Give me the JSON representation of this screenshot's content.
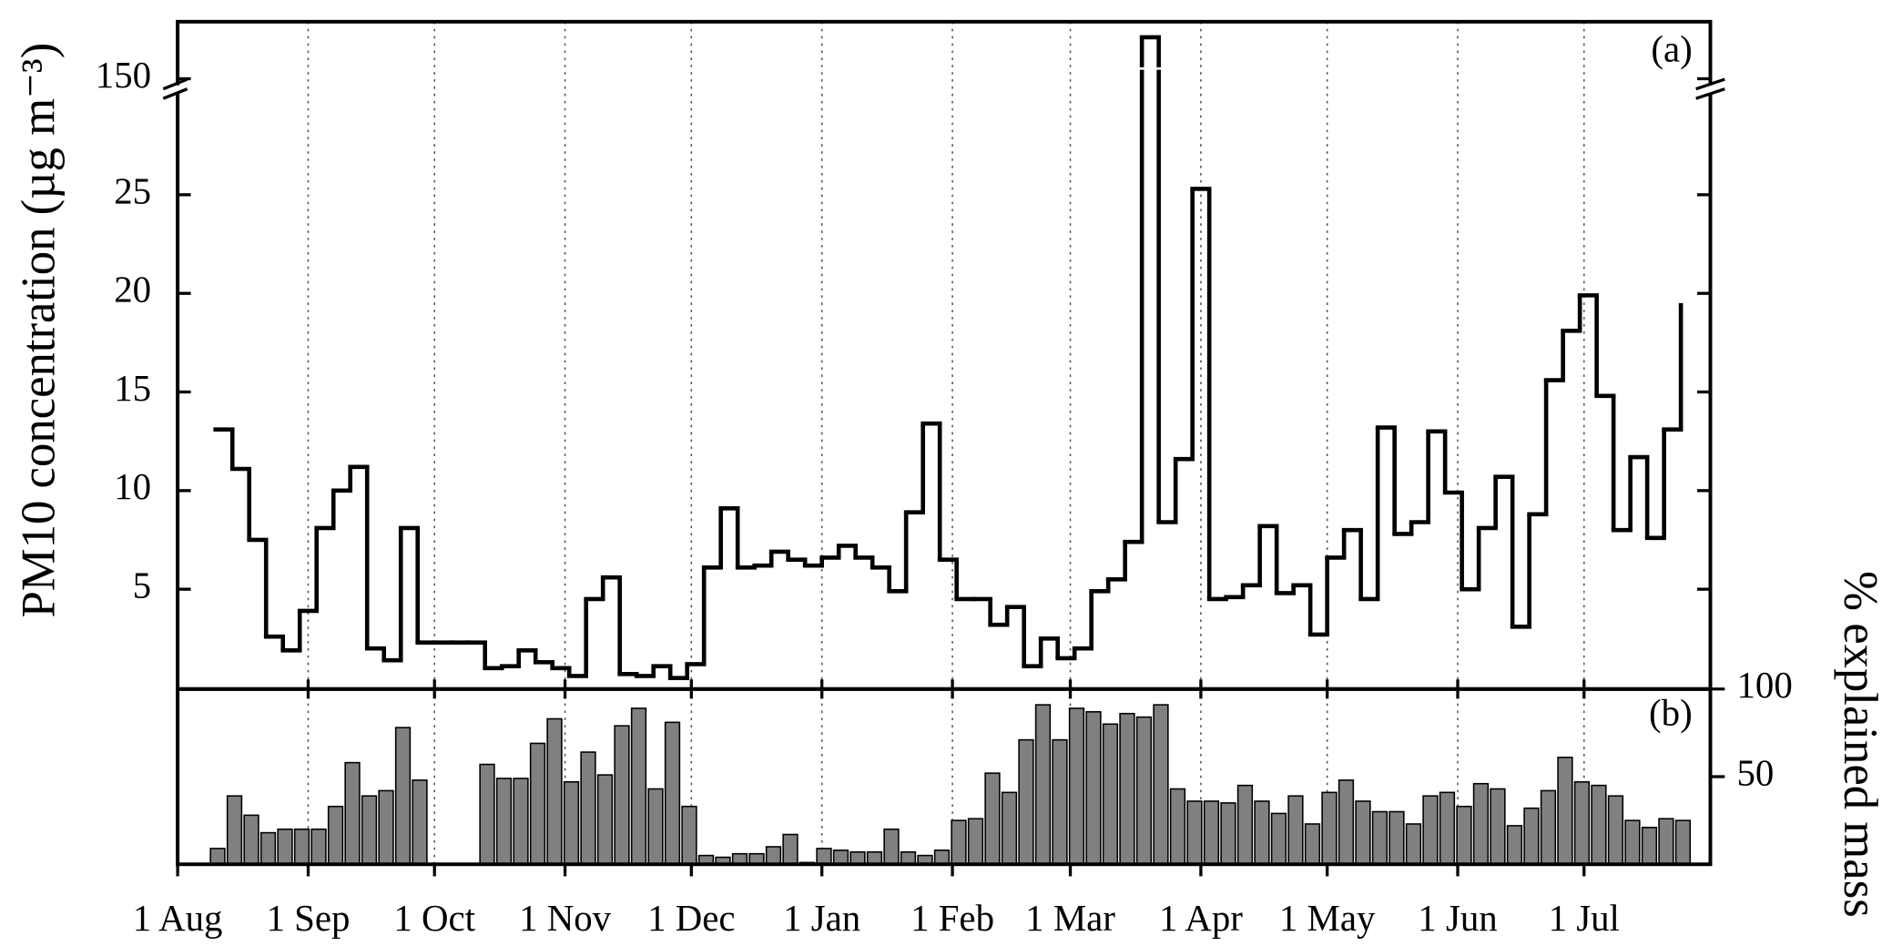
{
  "chart_data": [
    {
      "type": "line",
      "step": true,
      "annotation": "(a)",
      "y_label": "PM10 concentration (µg m⁻³)",
      "x": [
        9,
        13,
        17,
        21,
        25,
        29,
        33,
        37,
        41,
        45,
        49,
        53,
        57,
        61,
        65,
        69,
        73,
        77,
        81,
        85,
        89,
        93,
        97,
        101,
        105,
        109,
        113,
        117,
        121,
        125,
        129,
        133,
        137,
        141,
        145,
        149,
        153,
        157,
        161,
        165,
        169,
        173,
        177,
        181,
        185,
        189,
        193,
        197,
        201,
        205,
        209,
        213,
        217,
        221,
        225,
        229,
        233,
        237,
        241,
        245,
        249,
        253,
        257,
        261,
        265,
        269,
        273,
        277,
        281,
        285,
        289,
        293,
        297,
        301,
        305,
        309,
        313,
        317,
        321,
        325,
        329,
        333,
        337,
        341,
        345,
        349,
        353,
        357
      ],
      "series": [
        {
          "color": "#000000",
          "values": [
            13.1,
            11.1,
            7.5,
            2.6,
            1.9,
            3.9,
            8.1,
            10,
            11.2,
            2.0,
            1.4,
            8.1,
            2.3,
            2.3,
            2.3,
            2.3,
            1.0,
            1.1,
            1.9,
            1.3,
            1.0,
            0.6,
            4.5,
            5.6,
            0.7,
            0.6,
            1.1,
            0.5,
            1.2,
            6.1,
            9.1,
            6.1,
            6.2,
            6.9,
            6.5,
            6.2,
            6.6,
            7.2,
            6.6,
            6.1,
            4.9,
            8.9,
            13.4,
            6.5,
            4.5,
            4.5,
            3.2,
            4.1,
            1.1,
            2.5,
            1.5,
            2.0,
            4.9,
            5.5,
            7.4,
            166,
            8.4,
            11.6,
            25.3,
            4.5,
            4.6,
            5.2,
            8.2,
            4.8,
            5.2,
            2.7,
            6.6,
            8.0,
            4.5,
            13.2,
            7.8,
            8.4,
            13.0,
            9.9,
            5.0,
            8.1,
            10.7,
            3.1,
            8.8,
            15.6,
            18.1,
            19.9,
            14.8,
            8.0,
            11.7,
            7.6,
            13.1,
            19.4
          ]
        }
      ],
      "xlim": [
        0,
        364
      ],
      "ylim": [
        0,
        172
      ],
      "y_break": [
        30,
        147
      ],
      "yticks": [
        5,
        10,
        15,
        20,
        25,
        150
      ],
      "grid_x": true
    },
    {
      "type": "bar",
      "annotation": "(b)",
      "y_label": "% explained mass",
      "y_axis_side": "right",
      "x": [
        9,
        13,
        17,
        21,
        25,
        29,
        33,
        37,
        41,
        45,
        49,
        53,
        57,
        61,
        65,
        69,
        73,
        77,
        81,
        85,
        89,
        93,
        97,
        101,
        105,
        109,
        113,
        117,
        121,
        125,
        129,
        133,
        137,
        141,
        145,
        149,
        153,
        157,
        161,
        165,
        169,
        173,
        177,
        181,
        185,
        189,
        193,
        197,
        201,
        205,
        209,
        213,
        217,
        221,
        225,
        229,
        233,
        237,
        241,
        245,
        249,
        253,
        257,
        261,
        265,
        269,
        273,
        277,
        281,
        285,
        289,
        293,
        297,
        301,
        305,
        309,
        313,
        317,
        321,
        325,
        329,
        333,
        337,
        341,
        345,
        349,
        353,
        357
      ],
      "values": [
        9,
        39,
        28,
        18,
        20,
        20,
        20,
        33,
        58,
        39,
        42,
        78,
        48,
        null,
        null,
        null,
        57,
        49,
        49,
        69,
        83,
        47,
        64,
        51,
        79,
        89,
        43,
        81,
        33,
        5,
        4,
        6,
        6,
        10,
        17,
        1,
        9,
        8,
        7,
        7,
        20,
        7,
        5,
        8,
        25,
        26,
        52,
        41,
        71,
        91,
        71,
        89,
        87,
        80,
        86,
        84,
        91,
        43,
        36,
        36,
        35,
        45,
        36,
        29,
        39,
        23,
        41,
        48,
        36,
        30,
        30,
        23,
        39,
        41,
        33,
        46,
        43,
        22,
        32,
        42,
        61,
        47,
        45,
        39,
        25,
        21,
        26,
        25
      ],
      "color": "#808080",
      "xlim": [
        0,
        364
      ],
      "ylim": [
        0,
        100
      ],
      "yticks": [
        50,
        100
      ],
      "grid_x": true,
      "xticks": [
        {
          "value": 0,
          "label": "1 Aug"
        },
        {
          "value": 31,
          "label": "1 Sep"
        },
        {
          "value": 61,
          "label": "1 Oct"
        },
        {
          "value": 92,
          "label": "1 Nov"
        },
        {
          "value": 122,
          "label": "1 Dec"
        },
        {
          "value": 153,
          "label": "1 Jan"
        },
        {
          "value": 184,
          "label": "1 Feb"
        },
        {
          "value": 212,
          "label": "1 Mar"
        },
        {
          "value": 243,
          "label": "1 Apr"
        },
        {
          "value": 273,
          "label": "1 May"
        },
        {
          "value": 304,
          "label": "1 Jun"
        },
        {
          "value": 334,
          "label": "1 Jul"
        }
      ]
    }
  ]
}
